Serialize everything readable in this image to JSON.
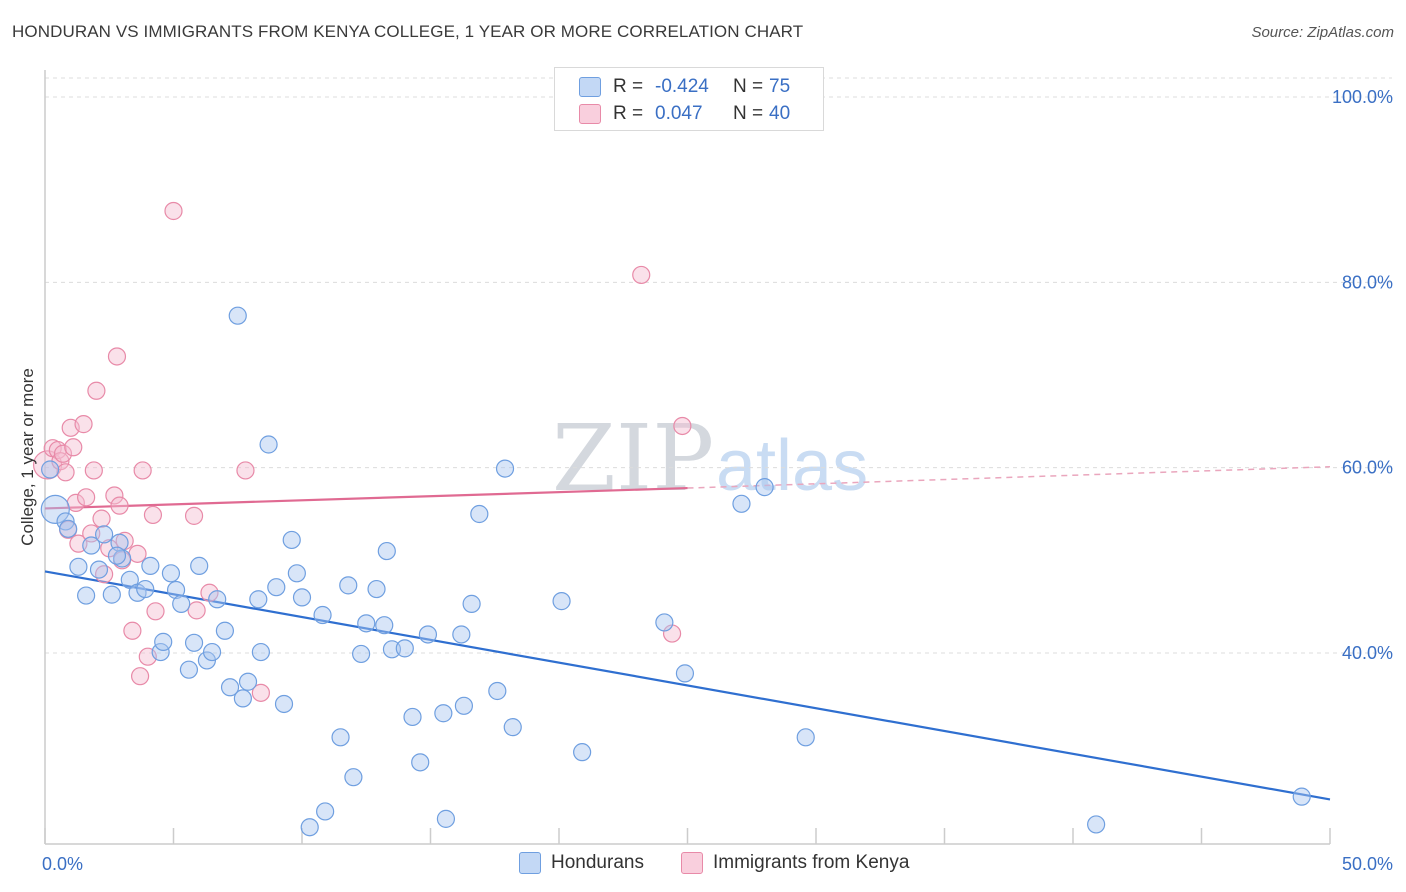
{
  "title": "HONDURAN VS IMMIGRANTS FROM KENYA COLLEGE, 1 YEAR OR MORE CORRELATION CHART",
  "source": "Source: ZipAtlas.com",
  "watermark": {
    "part1": "ZIP",
    "part2": "atlas"
  },
  "legend": {
    "row1": {
      "r_label": "R =",
      "r_value": "-0.424",
      "n_label": "N =",
      "n_value": "75",
      "color": "#6f9fe0"
    },
    "row2": {
      "r_label": "R =",
      "r_value": "0.047",
      "n_label": "N =",
      "n_value": "40",
      "color": "#e88aa8"
    }
  },
  "bottom_legend": {
    "series1": "Hondurans",
    "series2": "Immigrants from Kenya"
  },
  "chart_data": {
    "type": "scatter",
    "title": "HONDURAN VS IMMIGRANTS FROM KENYA COLLEGE, 1 YEAR OR MORE CORRELATION CHART",
    "xlabel": "",
    "ylabel": "College, 1 year or more",
    "xlim": [
      0,
      50
    ],
    "ylim": [
      20,
      102
    ],
    "x_tick_labels": [
      "0.0%",
      "50.0%"
    ],
    "y_ticks": [
      40,
      60,
      80,
      100
    ],
    "y_tick_labels": [
      "40.0%",
      "60.0%",
      "80.0%",
      "100.0%"
    ],
    "grid": true,
    "series": [
      {
        "name": "Hondurans",
        "color": "#6f9fe0",
        "fill": "#a9c6ef",
        "trend": {
          "x0": 0,
          "y0": 48.8,
          "x1": 50,
          "y1": 24.2
        },
        "points": [
          [
            0.4,
            55.5
          ],
          [
            0.8,
            54.2
          ],
          [
            0.9,
            53.4
          ],
          [
            1.3,
            49.3
          ],
          [
            1.8,
            51.6
          ],
          [
            2.1,
            49.0
          ],
          [
            2.3,
            52.8
          ],
          [
            2.6,
            46.3
          ],
          [
            2.9,
            51.9
          ],
          [
            3.0,
            50.2
          ],
          [
            3.3,
            47.9
          ],
          [
            3.6,
            46.5
          ],
          [
            3.9,
            46.9
          ],
          [
            4.1,
            49.4
          ],
          [
            4.5,
            40.1
          ],
          [
            4.6,
            41.2
          ],
          [
            4.9,
            48.6
          ],
          [
            5.1,
            46.8
          ],
          [
            5.3,
            45.3
          ],
          [
            5.6,
            38.2
          ],
          [
            5.8,
            41.1
          ],
          [
            6.0,
            49.4
          ],
          [
            6.3,
            39.2
          ],
          [
            6.5,
            40.1
          ],
          [
            6.7,
            45.8
          ],
          [
            7.0,
            42.4
          ],
          [
            7.2,
            36.3
          ],
          [
            7.5,
            76.4
          ],
          [
            7.7,
            35.1
          ],
          [
            7.9,
            36.9
          ],
          [
            8.3,
            45.8
          ],
          [
            8.4,
            40.1
          ],
          [
            8.7,
            62.5
          ],
          [
            9.0,
            47.1
          ],
          [
            9.3,
            34.5
          ],
          [
            9.6,
            52.2
          ],
          [
            9.8,
            48.6
          ],
          [
            10.0,
            46.0
          ],
          [
            10.3,
            21.2
          ],
          [
            10.8,
            44.1
          ],
          [
            10.9,
            22.9
          ],
          [
            11.5,
            30.9
          ],
          [
            11.8,
            47.3
          ],
          [
            12.0,
            26.6
          ],
          [
            12.3,
            39.9
          ],
          [
            12.5,
            43.2
          ],
          [
            12.9,
            46.9
          ],
          [
            13.2,
            43.0
          ],
          [
            13.3,
            51.0
          ],
          [
            13.5,
            40.4
          ],
          [
            14.0,
            40.5
          ],
          [
            14.3,
            33.1
          ],
          [
            14.6,
            28.2
          ],
          [
            14.9,
            42.0
          ],
          [
            15.5,
            33.5
          ],
          [
            15.6,
            22.1
          ],
          [
            16.2,
            42.0
          ],
          [
            16.3,
            34.3
          ],
          [
            16.6,
            45.3
          ],
          [
            16.9,
            55.0
          ],
          [
            17.6,
            35.9
          ],
          [
            17.9,
            59.9
          ],
          [
            18.2,
            32.0
          ],
          [
            20.1,
            45.6
          ],
          [
            20.9,
            29.3
          ],
          [
            24.1,
            43.3
          ],
          [
            24.9,
            37.8
          ],
          [
            27.1,
            56.1
          ],
          [
            28.0,
            57.9
          ],
          [
            29.6,
            30.9
          ],
          [
            40.9,
            21.5
          ],
          [
            48.9,
            24.5
          ],
          [
            0.2,
            59.8
          ],
          [
            1.6,
            46.2
          ],
          [
            2.8,
            50.5
          ]
        ]
      },
      {
        "name": "Immigrants from Kenya",
        "color": "#e88aa8",
        "fill": "#f4bdd0",
        "trend": {
          "x0": 0,
          "y0": 55.6,
          "x1": 25,
          "y1": 57.8
        },
        "trend_dashed": {
          "x0": 25,
          "y0": 57.8,
          "x1": 50,
          "y1": 60.1
        },
        "points": [
          [
            0.1,
            60.3
          ],
          [
            0.3,
            62.1
          ],
          [
            0.5,
            61.9
          ],
          [
            0.6,
            60.7
          ],
          [
            0.7,
            61.5
          ],
          [
            0.8,
            59.5
          ],
          [
            0.9,
            53.3
          ],
          [
            1.0,
            64.3
          ],
          [
            1.1,
            62.2
          ],
          [
            1.2,
            56.2
          ],
          [
            1.3,
            51.8
          ],
          [
            1.5,
            64.7
          ],
          [
            1.6,
            56.8
          ],
          [
            1.8,
            52.9
          ],
          [
            1.9,
            59.7
          ],
          [
            2.0,
            68.3
          ],
          [
            2.2,
            54.5
          ],
          [
            2.3,
            48.5
          ],
          [
            2.5,
            51.3
          ],
          [
            2.7,
            57.0
          ],
          [
            2.8,
            72.0
          ],
          [
            2.9,
            55.9
          ],
          [
            3.0,
            50.0
          ],
          [
            3.1,
            52.1
          ],
          [
            3.4,
            42.4
          ],
          [
            3.6,
            50.7
          ],
          [
            3.7,
            37.5
          ],
          [
            3.8,
            59.7
          ],
          [
            4.0,
            39.6
          ],
          [
            4.2,
            54.9
          ],
          [
            4.3,
            44.5
          ],
          [
            5.0,
            87.7
          ],
          [
            5.8,
            54.8
          ],
          [
            5.9,
            44.6
          ],
          [
            6.4,
            46.5
          ],
          [
            7.8,
            59.7
          ],
          [
            8.4,
            35.7
          ],
          [
            23.2,
            80.8
          ],
          [
            24.4,
            42.1
          ],
          [
            24.8,
            64.5
          ]
        ]
      }
    ]
  }
}
